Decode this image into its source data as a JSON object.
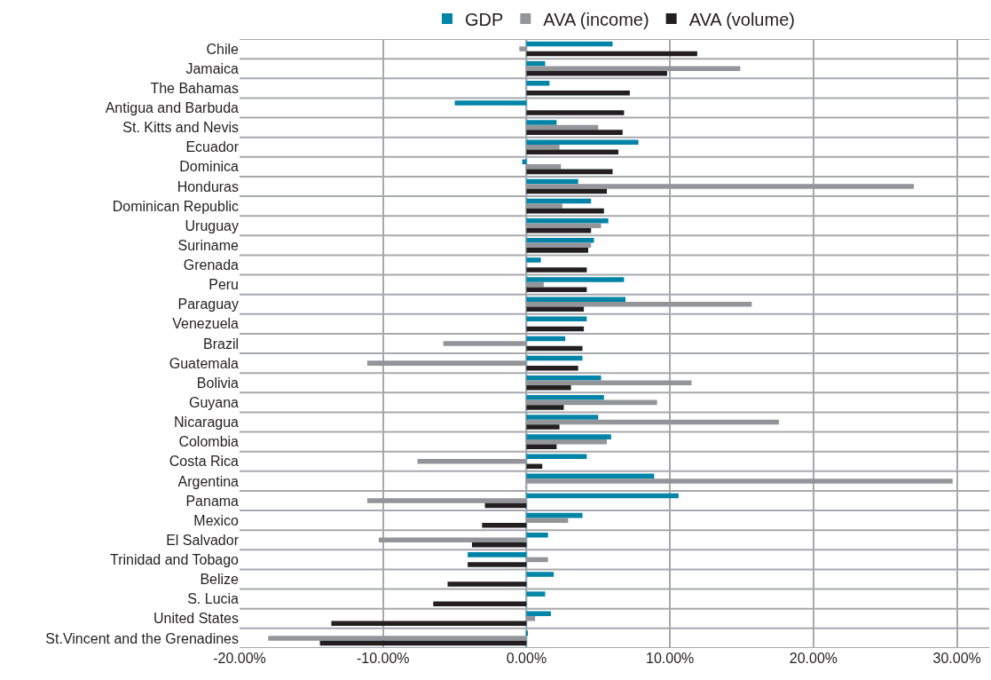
{
  "chart_data": {
    "type": "bar",
    "orientation": "horizontal",
    "legend": "top",
    "grid": true,
    "categories": [
      "Chile",
      "Jamaica",
      "The Bahamas",
      "Antigua and Barbuda",
      "St. Kitts and Nevis",
      "Ecuador",
      "Dominica",
      "Honduras",
      "Dominican Republic",
      "Uruguay",
      "Suriname",
      "Grenada",
      "Peru",
      "Paraguay",
      "Venezuela",
      "Brazil",
      "Guatemala",
      "Bolivia",
      "Guyana",
      "Nicaragua",
      "Colombia",
      "Costa Rica",
      "Argentina",
      "Panama",
      "Mexico",
      "El Salvador",
      "Trinidad and Tobago",
      "Belize",
      "S. Lucia",
      "United States",
      "St.Vincent and the Grenadines"
    ],
    "series": [
      {
        "name": "GDP",
        "color": "#0085a8",
        "values": [
          6.0,
          1.3,
          1.6,
          -5.0,
          2.1,
          7.8,
          -0.3,
          3.6,
          4.5,
          5.7,
          4.7,
          1.0,
          6.8,
          6.9,
          4.2,
          2.7,
          3.9,
          5.2,
          5.4,
          5.0,
          5.9,
          4.2,
          8.9,
          10.6,
          3.9,
          1.5,
          -4.1,
          1.9,
          1.3,
          1.7,
          0.1
        ]
      },
      {
        "name": "AVA (income)",
        "color": "#939598",
        "values": [
          -0.5,
          14.9,
          null,
          null,
          5.0,
          2.3,
          2.4,
          27.0,
          2.5,
          5.2,
          4.5,
          null,
          1.2,
          15.7,
          null,
          -5.8,
          -11.1,
          11.5,
          9.1,
          17.6,
          5.6,
          -7.6,
          29.7,
          -11.1,
          2.9,
          -10.3,
          1.5,
          null,
          null,
          0.6,
          -18.0
        ]
      },
      {
        "name": "AVA (volume)",
        "color": "#231f20",
        "values": [
          11.9,
          9.8,
          7.2,
          6.8,
          6.7,
          6.4,
          6.0,
          5.6,
          5.4,
          4.5,
          4.3,
          4.2,
          4.2,
          4.0,
          4.0,
          3.9,
          3.6,
          3.1,
          2.6,
          2.3,
          2.1,
          1.1,
          null,
          -2.9,
          -3.1,
          -3.8,
          -4.1,
          -5.5,
          -6.5,
          -13.6,
          -14.4
        ]
      }
    ],
    "xlim": [
      -20,
      32.25
    ],
    "ref_lines": [
      {
        "axis": "x",
        "value": 0,
        "color": "#6cc4dc"
      }
    ],
    "xticks": [
      {
        "value": -20,
        "label": "-20.00%"
      },
      {
        "value": -10,
        "label": "-10.00%"
      },
      {
        "value": 0,
        "label": "0.00%"
      },
      {
        "value": 10,
        "label": "10.00%"
      },
      {
        "value": 20,
        "label": "20.00%"
      },
      {
        "value": 30,
        "label": "30.00%"
      }
    ]
  }
}
